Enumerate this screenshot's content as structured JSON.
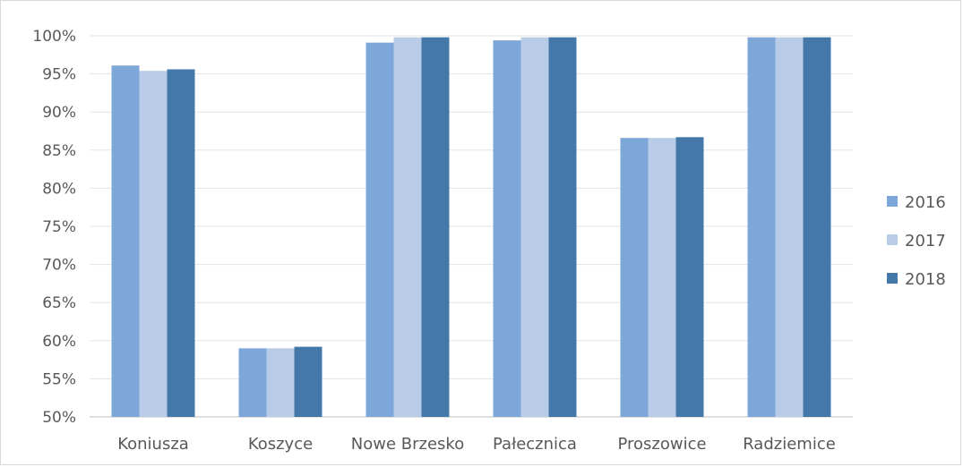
{
  "chart_data": {
    "type": "bar",
    "categories": [
      "Koniusza",
      "Koszyce",
      "Nowe Brzesko",
      "Pałecznica",
      "Proszowice",
      "Radziemice"
    ],
    "series": [
      {
        "name": "2016",
        "color": "#7ea7d9",
        "values": [
          96.1,
          59.0,
          99.1,
          99.4,
          86.6,
          99.8
        ]
      },
      {
        "name": "2017",
        "color": "#b8cce7",
        "values": [
          95.4,
          59.0,
          99.8,
          99.8,
          86.6,
          99.8
        ]
      },
      {
        "name": "2018",
        "color": "#4378a8",
        "values": [
          95.6,
          59.2,
          99.8,
          99.8,
          86.7,
          99.8
        ]
      }
    ],
    "ylim": [
      50,
      100
    ],
    "yticks": [
      "50%",
      "55%",
      "60%",
      "65%",
      "70%",
      "75%",
      "80%",
      "85%",
      "90%",
      "95%",
      "100%"
    ],
    "grid": true,
    "legend_position": "right"
  }
}
